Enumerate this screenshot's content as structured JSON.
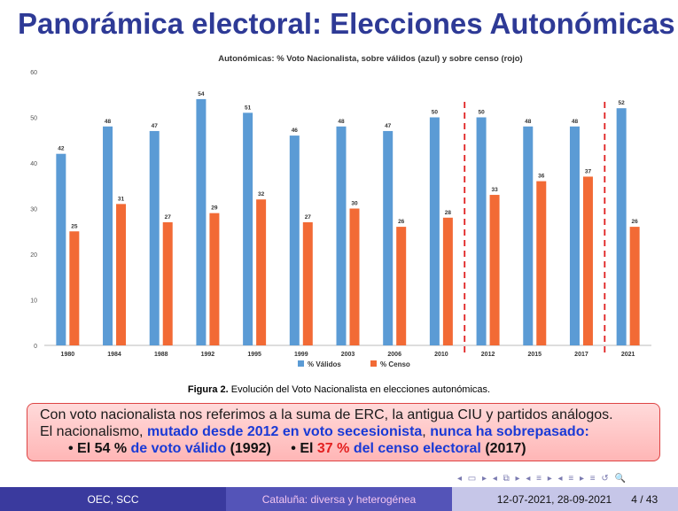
{
  "slide": {
    "title": "Panorámica electoral: Elecciones Autonómicas",
    "caption_label": "Figura 2.",
    "caption_text": "Evolución del Voto Nacionalista en elecciones autonómicas."
  },
  "box": {
    "line1": "Con voto nacionalista nos referimos a la suma de ERC, la antigua CIU y partidos análogos.",
    "line2_a": "El nacionalismo,",
    "line2_b": "mutado desde 2012 en voto secesionista",
    "line2_c": ",",
    "line2_d": "nunca ha sobrepasado:",
    "bullet1_a": "El 54 %",
    "bullet1_b": "de voto válido",
    "bullet1_c": "(1992)",
    "bullet2_a": "El",
    "bullet2_b": "37 %",
    "bullet2_c": "del censo electoral",
    "bullet2_d": "(2017)"
  },
  "footer": {
    "left": "OEC, SCC",
    "center": "Cataluña: diversa y heterogénea",
    "date": "12-07-2021, 28-09-2021",
    "page": "4 / 43"
  },
  "nav": {
    "symbols": "◂ ▭ ▸ ◂ ⧉ ▸ ◂ ≡ ▸ ◂ ≡ ▸ ≡ ↺ 🔍"
  },
  "colors": {
    "title": "#2E3A96",
    "valid": "#5B9BD5",
    "censo": "#F26A35",
    "divider": "#E02020"
  },
  "chart_data": {
    "type": "bar",
    "title": "Autonómicas: % Voto Nacionalista, sobre válidos (azul) y sobre censo (rojo)",
    "categories": [
      "1980",
      "1984",
      "1988",
      "1992",
      "1995",
      "1999",
      "2003",
      "2006",
      "2010",
      "2012",
      "2015",
      "2017",
      "2021"
    ],
    "series": [
      {
        "name": "% Válidos",
        "values": [
          42,
          48,
          47,
          54,
          51,
          46,
          48,
          47,
          50,
          50,
          48,
          48,
          52
        ]
      },
      {
        "name": "% Censo",
        "values": [
          25,
          31,
          27,
          29,
          32,
          27,
          30,
          26,
          28,
          33,
          36,
          37,
          26
        ]
      }
    ],
    "ylim": [
      0,
      60
    ],
    "yticks": [
      0,
      10,
      20,
      30,
      40,
      50,
      60
    ],
    "value_labels_valid": [
      "42",
      "48",
      "47",
      "54",
      "51",
      "46",
      "48",
      "47",
      "50",
      "50",
      "48",
      "48",
      "52"
    ],
    "value_labels_censo": [
      "25",
      "31",
      "27",
      "29",
      "32",
      "27",
      "30",
      "26",
      "28",
      "33",
      "36",
      "37",
      "26"
    ],
    "dividers_after": [
      "2010",
      "2017"
    ],
    "legend_position": "bottom",
    "grid": false
  }
}
